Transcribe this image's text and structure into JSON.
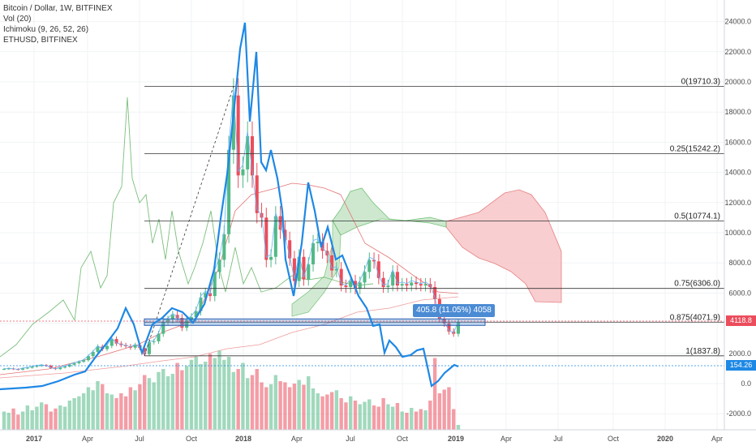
{
  "legend": {
    "symbol": "Bitcoin / Dollar, 1W, BITFINEX",
    "volume": "Vol (20)",
    "ichimoku": "Ichimoku (9, 26, 52, 26)",
    "compare": "ETHUSD, BITFINEX"
  },
  "colors": {
    "up": "#53b987",
    "down": "#eb4d5c",
    "eth_line": "#1e88e5",
    "ichimoku_line": "#7cbf7c",
    "cloud_bear": "#f8c9cc",
    "cloud_bull": "#c8e6c9",
    "measure_box": "#4b8bd4"
  },
  "measure_label": "405.8 (11.05%) 4058",
  "price_tags": {
    "last_price": "4118.8",
    "eth_price": "154.26"
  },
  "chart_data": {
    "type": "candlestick",
    "x_axis": {
      "labels": [
        "2017",
        "Apr",
        "Jul",
        "Oct",
        "2018",
        "Apr",
        "Jul",
        "Oct",
        "2019",
        "Apr",
        "Jul",
        "Oct",
        "2020",
        "Apr"
      ]
    },
    "y_axis": {
      "side": "right",
      "labels": [
        "24000.0",
        "22000.0",
        "20000.0",
        "18000.0",
        "16000.0",
        "14000.0",
        "12000.0",
        "10000.0",
        "8000.0",
        "6000.0",
        "4000.0",
        "2000.0",
        "0.0",
        "-2000.0"
      ],
      "ylim": [
        -2900,
        25200
      ]
    },
    "fib_levels": [
      {
        "label": "0(19710.3)",
        "value": 19710.3
      },
      {
        "label": "0.25(15242.2)",
        "value": 15242.2
      },
      {
        "label": "0.5(10774.1)",
        "value": 10774.1
      },
      {
        "label": "0.75(6306.0)",
        "value": 6306.0
      },
      {
        "label": "0.875(4071.9)",
        "value": 4071.9
      },
      {
        "label": "1(1837.8)",
        "value": 1837.8
      }
    ],
    "btc_weekly_close": [
      970,
      1000,
      960,
      920,
      1010,
      1050,
      1120,
      1180,
      1220,
      1180,
      1030,
      960,
      1060,
      1130,
      1250,
      1350,
      1450,
      1550,
      1820,
      2100,
      2450,
      2280,
      2500,
      2950,
      2650,
      2550,
      2480,
      2380,
      2550,
      2350,
      1950,
      2750,
      2800,
      3300,
      4100,
      4250,
      4550,
      4350,
      3700,
      4200,
      4400,
      4800,
      5700,
      6000,
      5800,
      7400,
      8200,
      9900,
      15500,
      19100,
      13800,
      14200,
      16400,
      13800,
      11300,
      11000,
      8200,
      8400,
      11100,
      10200,
      9500,
      8300,
      6800,
      8400,
      6900,
      7900,
      9300,
      9400,
      8800,
      8500,
      7500,
      7600,
      6500,
      6400,
      6800,
      6300,
      6700,
      7400,
      8200,
      8100,
      7000,
      6400,
      6500,
      7400,
      6500,
      6600,
      6500,
      6700,
      6600,
      6500,
      6600,
      6400,
      5600,
      4300,
      4000,
      3450,
      3300,
      4060
    ],
    "volume_shape": [
      30,
      28,
      35,
      25,
      30,
      40,
      32,
      38,
      45,
      42,
      30,
      35,
      40,
      38,
      48,
      52,
      55,
      60,
      70,
      65,
      80,
      75,
      60,
      58,
      52,
      60,
      55,
      70,
      65,
      75,
      90,
      85,
      78,
      95,
      100,
      88,
      92,
      110,
      98,
      105,
      115,
      120,
      108,
      112,
      125,
      118,
      130,
      115,
      120,
      95,
      100,
      110,
      85,
      90,
      100,
      78,
      70,
      75,
      90,
      80,
      78,
      70,
      76,
      82,
      74,
      88,
      68,
      60,
      55,
      58,
      62,
      65,
      52,
      45,
      55,
      48,
      42,
      46,
      50,
      40,
      38,
      52,
      42,
      38,
      44,
      30,
      28,
      36,
      30,
      34,
      32,
      48,
      118,
      60,
      66,
      70,
      34,
      8
    ],
    "eth_line": [
      [
        0,
        480
      ],
      [
        32,
        478
      ],
      [
        52,
        476
      ],
      [
        72,
        470
      ],
      [
        92,
        462
      ],
      [
        105,
        458
      ],
      [
        118,
        440
      ],
      [
        130,
        425
      ],
      [
        145,
        405
      ],
      [
        155,
        380
      ],
      [
        165,
        400
      ],
      [
        175,
        435
      ],
      [
        188,
        400
      ],
      [
        200,
        392
      ],
      [
        212,
        380
      ],
      [
        225,
        385
      ],
      [
        238,
        398
      ],
      [
        252,
        375
      ],
      [
        264,
        332
      ],
      [
        272,
        270
      ],
      [
        280,
        215
      ],
      [
        288,
        140
      ],
      [
        296,
        60
      ],
      [
        302,
        28
      ],
      [
        308,
        150
      ],
      [
        316,
        64
      ],
      [
        322,
        200
      ],
      [
        328,
        210
      ],
      [
        334,
        185
      ],
      [
        342,
        220
      ],
      [
        348,
        260
      ],
      [
        352,
        320
      ],
      [
        362,
        365
      ],
      [
        372,
        300
      ],
      [
        380,
        225
      ],
      [
        388,
        260
      ],
      [
        396,
        305
      ],
      [
        404,
        280
      ],
      [
        414,
        320
      ],
      [
        422,
        315
      ],
      [
        432,
        340
      ],
      [
        442,
        365
      ],
      [
        452,
        380
      ],
      [
        460,
        402
      ],
      [
        468,
        400
      ],
      [
        474,
        435
      ],
      [
        480,
        420
      ],
      [
        488,
        428
      ],
      [
        496,
        440
      ],
      [
        506,
        438
      ],
      [
        514,
        432
      ],
      [
        522,
        430
      ],
      [
        526,
        448
      ],
      [
        532,
        476
      ],
      [
        540,
        470
      ],
      [
        548,
        460
      ],
      [
        554,
        455
      ],
      [
        560,
        450
      ],
      [
        565,
        452
      ]
    ],
    "ichimoku_cloud": {
      "bear": [
        [
          550,
          273
        ],
        [
          590,
          262
        ],
        [
          622,
          238
        ],
        [
          640,
          234
        ],
        [
          655,
          240
        ],
        [
          672,
          262
        ],
        [
          692,
          310
        ],
        [
          692,
          373
        ],
        [
          660,
          372
        ],
        [
          648,
          350
        ],
        [
          630,
          335
        ],
        [
          610,
          325
        ],
        [
          590,
          318
        ],
        [
          570,
          305
        ],
        [
          550,
          280
        ]
      ],
      "bull": [
        [
          410,
          272
        ],
        [
          420,
          258
        ],
        [
          432,
          236
        ],
        [
          446,
          232
        ],
        [
          460,
          250
        ],
        [
          480,
          270
        ],
        [
          500,
          272
        ],
        [
          530,
          268
        ],
        [
          550,
          273
        ],
        [
          550,
          280
        ],
        [
          530,
          275
        ],
        [
          500,
          272
        ],
        [
          470,
          270
        ],
        [
          440,
          280
        ],
        [
          420,
          290
        ]
      ],
      "bull_low": [
        [
          360,
          375
        ],
        [
          380,
          360
        ],
        [
          400,
          340
        ],
        [
          410,
          300
        ],
        [
          410,
          272
        ],
        [
          420,
          290
        ],
        [
          418,
          330
        ],
        [
          400,
          360
        ],
        [
          380,
          385
        ],
        [
          360,
          390
        ]
      ]
    }
  }
}
